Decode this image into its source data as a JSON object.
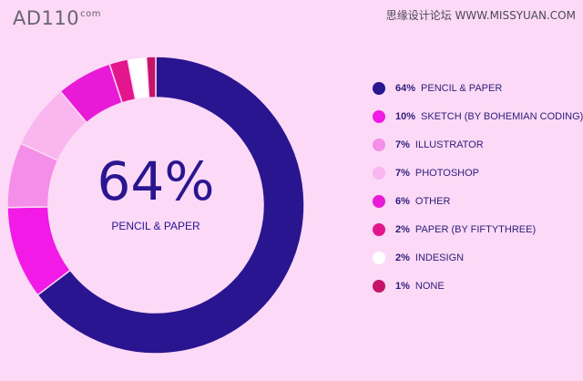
{
  "header": {
    "logo_text": "AD110",
    "logo_suffix": "com",
    "watermark": "思缘设计论坛  WWW.MISSYUAN.COM"
  },
  "chart_data": {
    "type": "pie",
    "donut": true,
    "center_value": "64%",
    "center_label": "PENCIL & PAPER",
    "legend_position": "right",
    "slices": [
      {
        "name": "PENCIL & PAPER",
        "value": 64,
        "label": "64%",
        "color": "#2a1590"
      },
      {
        "name": "SKETCH (BY BOHEMIAN CODING)",
        "value": 10,
        "label": "10%",
        "color": "#f21ae6"
      },
      {
        "name": "ILLUSTRATOR",
        "value": 7,
        "label": "7%",
        "color": "#f58ee8"
      },
      {
        "name": "PHOTOSHOP",
        "value": 7,
        "label": "7%",
        "color": "#f9b6ef"
      },
      {
        "name": "OTHER",
        "value": 6,
        "label": "6%",
        "color": "#e81ad8"
      },
      {
        "name": "PAPER (BY FIFTYTHREE)",
        "value": 2,
        "label": "2%",
        "color": "#e3168e"
      },
      {
        "name": "INDESIGN",
        "value": 2,
        "label": "2%",
        "color": "#ffffff"
      },
      {
        "name": "NONE",
        "value": 1,
        "label": "1%",
        "color": "#c51468"
      }
    ]
  }
}
